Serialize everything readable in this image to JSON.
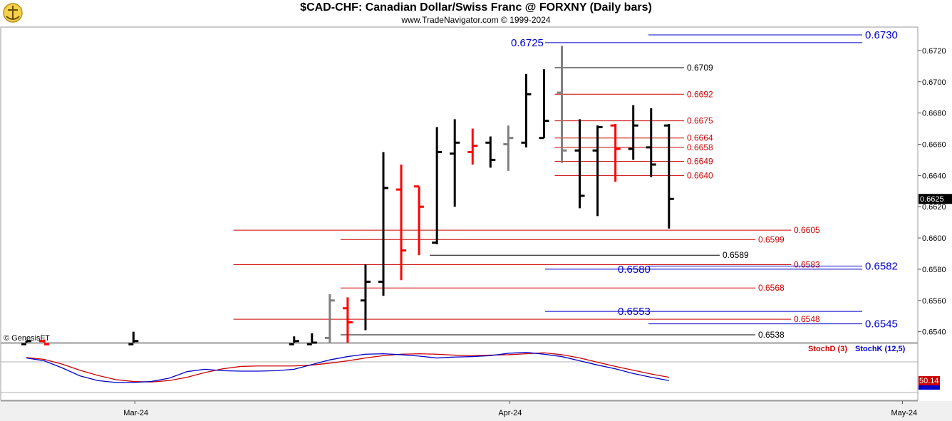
{
  "header": {
    "title": "$CAD-CHF:  Canadian Dollar/Swiss Franc @ FORXNY  (Daily bars)",
    "subtitle": "www.TradeNavigator.com © 1999-2024"
  },
  "copyright": "© GenesisFT",
  "colors": {
    "up_bar": "#000000",
    "down_bar": "#ff0000",
    "neutral_bar": "#808080",
    "red_level": "#cc0000",
    "black_level": "#000000",
    "blue_level": "#0000cc",
    "stoch_d": "#cc0000",
    "stoch_k": "#0000cc",
    "last_price_bg": "#000000"
  },
  "chart_data": [
    {
      "type": "ohlc",
      "title": "$CAD-CHF:  Canadian Dollar/Swiss Franc @ FORXNY  (Daily bars)",
      "y_axis": {
        "range": [
          0.6533,
          0.6735
        ],
        "ticks": [
          "0.6540",
          "0.6560",
          "0.6580",
          "0.6600",
          "0.6620",
          "0.6640",
          "0.6660",
          "0.6680",
          "0.6700",
          "0.6720"
        ],
        "tick_values": [
          0.654,
          0.656,
          0.658,
          0.66,
          0.662,
          0.664,
          0.666,
          0.668,
          0.67,
          0.672
        ]
      },
      "x_axis": {
        "labels": [
          "Mar-24",
          "Apr-24",
          "May-24"
        ],
        "label_bar_index": [
          6,
          27,
          49
        ]
      },
      "last_price": "0.6625",
      "bars": [
        {
          "i": 0,
          "h": 0.6534,
          "l": 0.653,
          "c": 0.6534,
          "o": 0.6532,
          "color": "black"
        },
        {
          "i": 1,
          "h": 0.6535,
          "l": 0.653,
          "c": 0.6532,
          "o": 0.6534,
          "color": "red"
        },
        {
          "i": 6,
          "h": 0.654,
          "l": 0.653,
          "c": 0.6534,
          "o": 0.6532,
          "color": "black"
        },
        {
          "i": 15,
          "h": 0.6537,
          "l": 0.653,
          "c": 0.6534,
          "o": 0.6532,
          "color": "black"
        },
        {
          "i": 16,
          "h": 0.6539,
          "l": 0.653,
          "c": 0.6533,
          "o": 0.6532,
          "color": "black"
        },
        {
          "i": 17,
          "h": 0.6564,
          "l": 0.6533,
          "c": 0.656,
          "o": 0.6536,
          "color": "gray"
        },
        {
          "i": 18,
          "h": 0.6562,
          "l": 0.6533,
          "c": 0.6546,
          "o": 0.6555,
          "color": "red"
        },
        {
          "i": 19,
          "h": 0.6583,
          "l": 0.6541,
          "c": 0.6572,
          "o": 0.656,
          "color": "black"
        },
        {
          "i": 20,
          "h": 0.6655,
          "l": 0.6563,
          "c": 0.6632,
          "o": 0.6572,
          "color": "black"
        },
        {
          "i": 21,
          "h": 0.6647,
          "l": 0.6573,
          "c": 0.6592,
          "o": 0.6631,
          "color": "red"
        },
        {
          "i": 22,
          "h": 0.6633,
          "l": 0.6589,
          "c": 0.662,
          "o": 0.6633,
          "color": "red"
        },
        {
          "i": 23,
          "h": 0.6671,
          "l": 0.6596,
          "c": 0.6655,
          "o": 0.6597,
          "color": "black"
        },
        {
          "i": 24,
          "h": 0.6676,
          "l": 0.662,
          "c": 0.6661,
          "o": 0.6654,
          "color": "black"
        },
        {
          "i": 25,
          "h": 0.667,
          "l": 0.6647,
          "c": 0.6659,
          "o": 0.6655,
          "color": "red"
        },
        {
          "i": 26,
          "h": 0.6665,
          "l": 0.6645,
          "c": 0.665,
          "o": 0.6661,
          "color": "black"
        },
        {
          "i": 27,
          "h": 0.6672,
          "l": 0.6643,
          "c": 0.6664,
          "o": 0.666,
          "color": "gray"
        },
        {
          "i": 28,
          "h": 0.6705,
          "l": 0.6658,
          "c": 0.6692,
          "o": 0.6661,
          "color": "black"
        },
        {
          "i": 29,
          "h": 0.6708,
          "l": 0.6664,
          "c": 0.6675,
          "o": 0.6664,
          "color": "black"
        },
        {
          "i": 30,
          "h": 0.6723,
          "l": 0.6648,
          "c": 0.6656,
          "o": 0.6693,
          "color": "gray"
        },
        {
          "i": 31,
          "h": 0.6676,
          "l": 0.6619,
          "c": 0.6627,
          "o": 0.6656,
          "color": "black"
        },
        {
          "i": 32,
          "h": 0.6672,
          "l": 0.6614,
          "c": 0.6671,
          "o": 0.6656,
          "color": "black"
        },
        {
          "i": 33,
          "h": 0.6673,
          "l": 0.6636,
          "c": 0.6657,
          "o": 0.6672,
          "color": "red"
        },
        {
          "i": 34,
          "h": 0.6685,
          "l": 0.665,
          "c": 0.6672,
          "o": 0.6657,
          "color": "black"
        },
        {
          "i": 35,
          "h": 0.6683,
          "l": 0.6639,
          "c": 0.6647,
          "o": 0.6658,
          "color": "black"
        },
        {
          "i": 36,
          "h": 0.6673,
          "l": 0.6606,
          "c": 0.6625,
          "o": 0.6672,
          "color": "black"
        }
      ],
      "levels": [
        {
          "value": 0.6709,
          "label": "0.6709",
          "color": "black",
          "from_bar": 30
        },
        {
          "value": 0.6692,
          "label": "0.6692",
          "color": "red",
          "from_bar": 30
        },
        {
          "value": 0.6675,
          "label": "0.6675",
          "color": "red",
          "from_bar": 30
        },
        {
          "value": 0.6664,
          "label": "0.6664",
          "color": "red",
          "from_bar": 30
        },
        {
          "value": 0.6658,
          "label": "0.6658",
          "color": "red",
          "from_bar": 30
        },
        {
          "value": 0.6649,
          "label": "0.6649",
          "color": "red",
          "from_bar": 30
        },
        {
          "value": 0.664,
          "label": "0.6640",
          "color": "red",
          "from_bar": 30
        },
        {
          "value": 0.6605,
          "label": "0.6605",
          "color": "red",
          "from_bar": 12
        },
        {
          "value": 0.6599,
          "label": "0.6599",
          "color": "red",
          "from_bar": 18
        },
        {
          "value": 0.6589,
          "label": "0.6589",
          "color": "black",
          "from_bar": 23
        },
        {
          "value": 0.6583,
          "label": "0.6583",
          "color": "red",
          "from_bar": 12
        },
        {
          "value": 0.6568,
          "label": "0.6568",
          "color": "red",
          "from_bar": 18
        },
        {
          "value": 0.6548,
          "label": "0.6548",
          "color": "red",
          "from_bar": 12
        },
        {
          "value": 0.6538,
          "label": "0.6538",
          "color": "black",
          "from_bar": 18
        }
      ],
      "projections": [
        {
          "value": 0.673,
          "label": "0.6730",
          "side": "right"
        },
        {
          "value": 0.6725,
          "label": "0.6725",
          "side": "left"
        },
        {
          "value": 0.6582,
          "label": "0.6582",
          "side": "right"
        },
        {
          "value": 0.658,
          "label": "0.6580",
          "side": "left"
        },
        {
          "value": 0.6553,
          "label": "0.6553",
          "side": "left"
        },
        {
          "value": 0.6545,
          "label": "0.6545",
          "side": "right"
        }
      ]
    },
    {
      "type": "line",
      "series": [
        {
          "name": "StochD (3)",
          "color": "#cc0000",
          "values": [
            82,
            78,
            68,
            55,
            44,
            35,
            31,
            30,
            33,
            40,
            50,
            58,
            63,
            64,
            64,
            64,
            66,
            70,
            75,
            81,
            86,
            89,
            90,
            89,
            87,
            86,
            87,
            88,
            90,
            92,
            88,
            81,
            72,
            63,
            55,
            47,
            40
          ]
        },
        {
          "name": "StochK (12,5)",
          "color": "#0000cc",
          "values": [
            81,
            75,
            60,
            43,
            33,
            29,
            29,
            31,
            38,
            52,
            57,
            54,
            53,
            53,
            54,
            57,
            67,
            77,
            84,
            89,
            90,
            88,
            85,
            81,
            83,
            84,
            86,
            91,
            93,
            89,
            84,
            75,
            66,
            58,
            48,
            40,
            33
          ]
        }
      ],
      "y_range": [
        0,
        100
      ],
      "last_value": "50.14"
    }
  ]
}
